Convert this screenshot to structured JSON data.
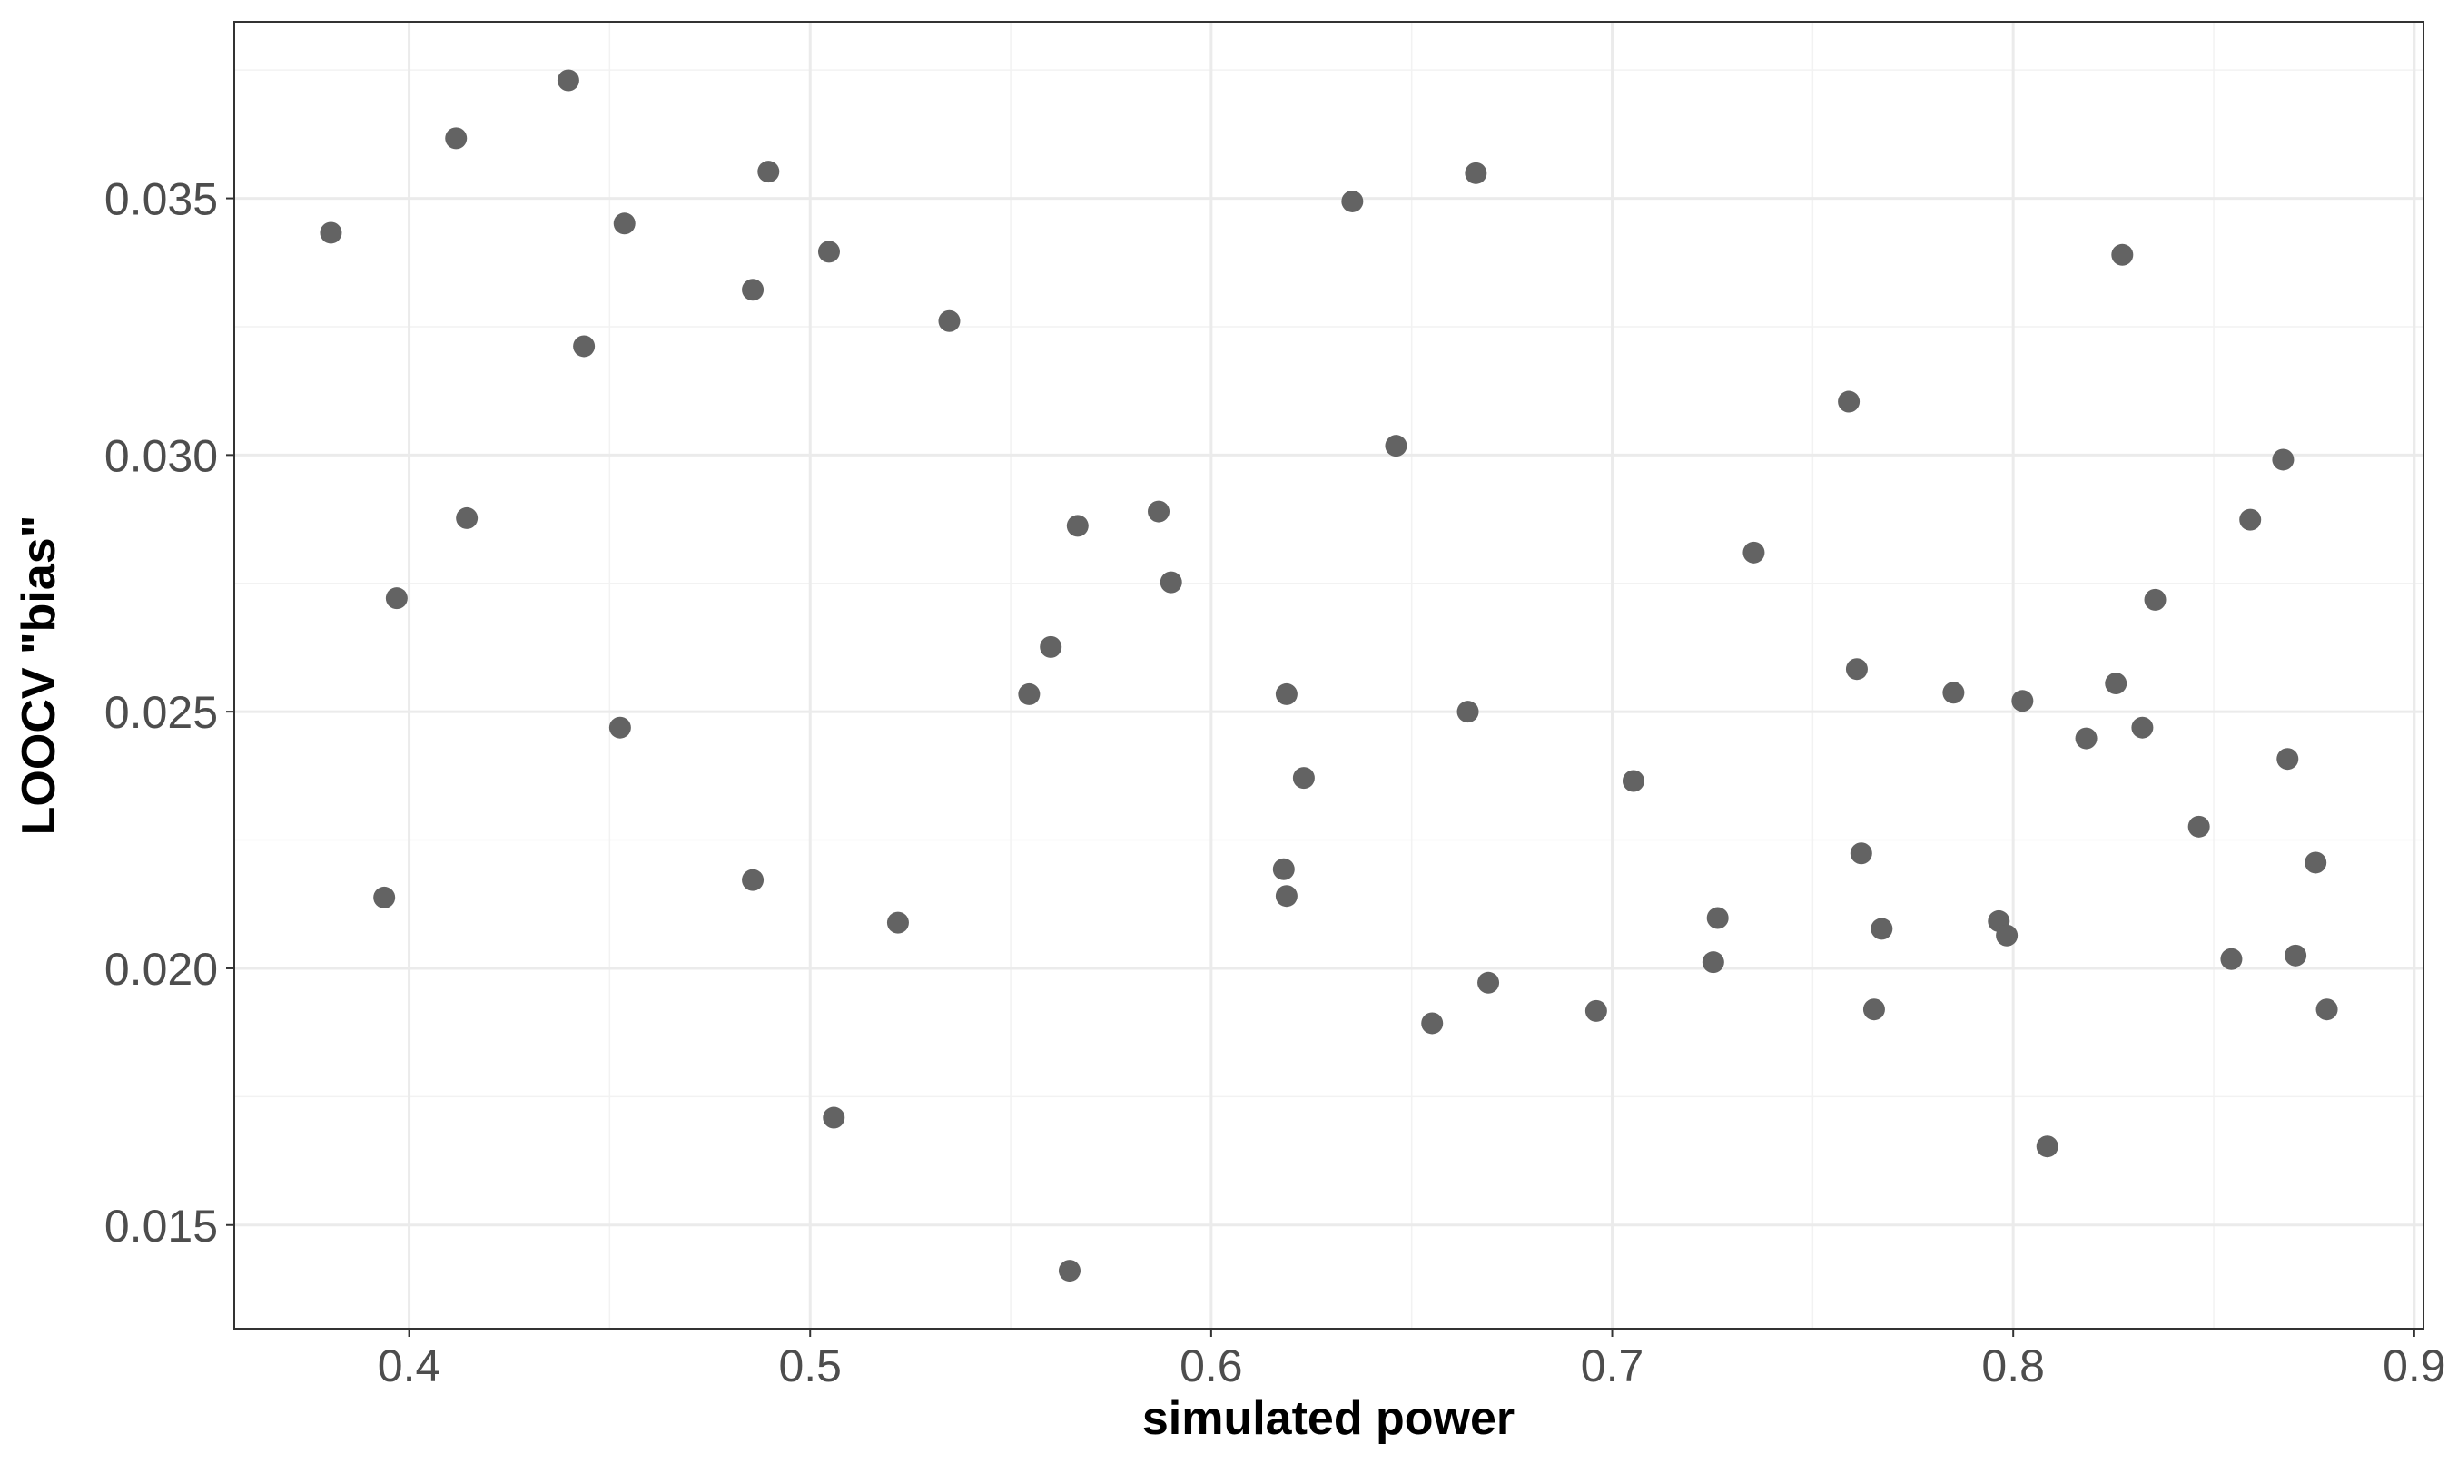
{
  "chart_data": {
    "type": "scatter",
    "x_label": "simulated power",
    "y_label": "LOOCV \"bias\"",
    "color": "#636363",
    "grid": true,
    "xlim": [
      0.3564,
      0.9023
    ],
    "ylim": [
      0.01298,
      0.03844
    ],
    "xticks": [
      0.4,
      0.5,
      0.6,
      0.7,
      0.8,
      0.9
    ],
    "yticks": [
      0.015,
      {
        "value": 0.02,
        "label": "0.020"
      },
      0.025,
      {
        "value": 0.03,
        "label": "0.030"
      },
      0.035
    ],
    "x": [
      0.3805,
      0.3938,
      0.3969,
      0.4117,
      0.4144,
      0.4397,
      0.4436,
      0.4526,
      0.4537,
      0.4857,
      0.4857,
      0.4896,
      0.5047,
      0.5059,
      0.5219,
      0.5347,
      0.5546,
      0.56,
      0.5647,
      0.5667,
      0.5869,
      0.59,
      0.6181,
      0.6188,
      0.6188,
      0.6231,
      0.6352,
      0.6461,
      0.6551,
      0.664,
      0.666,
      0.6691,
      0.696,
      0.7053,
      0.7252,
      0.7263,
      0.7353,
      0.759,
      0.761,
      0.7621,
      0.7653,
      0.7672,
      0.7851,
      0.7964,
      0.7984,
      0.8023,
      0.8085,
      0.8182,
      0.8256,
      0.8272,
      0.8322,
      0.8354,
      0.8463,
      0.8544,
      0.8591,
      0.8673,
      0.8684,
      0.8704,
      0.8754,
      0.8782
    ],
    "values": [
      0.03433,
      0.02138,
      0.02721,
      0.03617,
      0.02877,
      0.0373,
      0.03212,
      0.02469,
      0.03451,
      0.03322,
      0.02172,
      0.03552,
      0.03396,
      0.01709,
      0.02089,
      0.03261,
      0.02534,
      0.02626,
      0.01411,
      0.02862,
      0.0289,
      0.02752,
      0.02193,
      0.02534,
      0.02141,
      0.02371,
      0.03494,
      0.03018,
      0.01893,
      0.025,
      0.03549,
      0.01972,
      0.01917,
      0.02365,
      0.02012,
      0.02098,
      0.0281,
      0.03104,
      0.02583,
      0.02224,
      0.0192,
      0.02077,
      0.02537,
      0.02092,
      0.02064,
      0.02521,
      0.01653,
      0.02448,
      0.02555,
      0.0339,
      0.02469,
      0.02718,
      0.02276,
      0.02018,
      0.02874,
      0.02991,
      0.02408,
      0.02025,
      0.02206,
      0.0192
    ]
  }
}
